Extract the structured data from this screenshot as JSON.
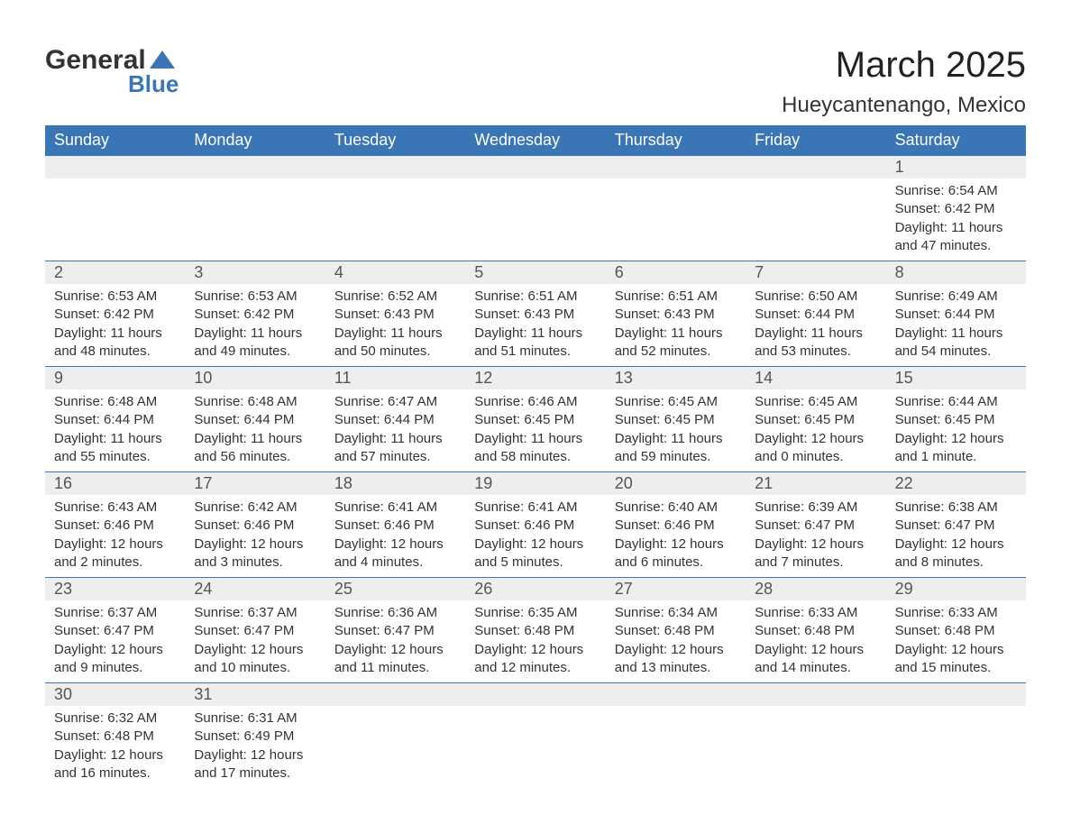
{
  "colors": {
    "header_bg": "#3a75b5",
    "header_text": "#ffffff",
    "daynum_bg": "#eeeeee",
    "body_text": "#333333",
    "divider": "#3a75b5",
    "logo_accent": "#3a75b5"
  },
  "logo": {
    "text1": "General",
    "text2": "Blue"
  },
  "title": "March 2025",
  "location": "Hueycantenango, Mexico",
  "day_headers": [
    "Sunday",
    "Monday",
    "Tuesday",
    "Wednesday",
    "Thursday",
    "Friday",
    "Saturday"
  ],
  "labels": {
    "sunrise": "Sunrise:",
    "sunset": "Sunset:",
    "daylight": "Daylight:"
  },
  "weeks": [
    [
      {
        "num": "",
        "sunrise": "",
        "sunset": "",
        "daylight": ""
      },
      {
        "num": "",
        "sunrise": "",
        "sunset": "",
        "daylight": ""
      },
      {
        "num": "",
        "sunrise": "",
        "sunset": "",
        "daylight": ""
      },
      {
        "num": "",
        "sunrise": "",
        "sunset": "",
        "daylight": ""
      },
      {
        "num": "",
        "sunrise": "",
        "sunset": "",
        "daylight": ""
      },
      {
        "num": "",
        "sunrise": "",
        "sunset": "",
        "daylight": ""
      },
      {
        "num": "1",
        "sunrise": "6:54 AM",
        "sunset": "6:42 PM",
        "daylight": "11 hours and 47 minutes."
      }
    ],
    [
      {
        "num": "2",
        "sunrise": "6:53 AM",
        "sunset": "6:42 PM",
        "daylight": "11 hours and 48 minutes."
      },
      {
        "num": "3",
        "sunrise": "6:53 AM",
        "sunset": "6:42 PM",
        "daylight": "11 hours and 49 minutes."
      },
      {
        "num": "4",
        "sunrise": "6:52 AM",
        "sunset": "6:43 PM",
        "daylight": "11 hours and 50 minutes."
      },
      {
        "num": "5",
        "sunrise": "6:51 AM",
        "sunset": "6:43 PM",
        "daylight": "11 hours and 51 minutes."
      },
      {
        "num": "6",
        "sunrise": "6:51 AM",
        "sunset": "6:43 PM",
        "daylight": "11 hours and 52 minutes."
      },
      {
        "num": "7",
        "sunrise": "6:50 AM",
        "sunset": "6:44 PM",
        "daylight": "11 hours and 53 minutes."
      },
      {
        "num": "8",
        "sunrise": "6:49 AM",
        "sunset": "6:44 PM",
        "daylight": "11 hours and 54 minutes."
      }
    ],
    [
      {
        "num": "9",
        "sunrise": "6:48 AM",
        "sunset": "6:44 PM",
        "daylight": "11 hours and 55 minutes."
      },
      {
        "num": "10",
        "sunrise": "6:48 AM",
        "sunset": "6:44 PM",
        "daylight": "11 hours and 56 minutes."
      },
      {
        "num": "11",
        "sunrise": "6:47 AM",
        "sunset": "6:44 PM",
        "daylight": "11 hours and 57 minutes."
      },
      {
        "num": "12",
        "sunrise": "6:46 AM",
        "sunset": "6:45 PM",
        "daylight": "11 hours and 58 minutes."
      },
      {
        "num": "13",
        "sunrise": "6:45 AM",
        "sunset": "6:45 PM",
        "daylight": "11 hours and 59 minutes."
      },
      {
        "num": "14",
        "sunrise": "6:45 AM",
        "sunset": "6:45 PM",
        "daylight": "12 hours and 0 minutes."
      },
      {
        "num": "15",
        "sunrise": "6:44 AM",
        "sunset": "6:45 PM",
        "daylight": "12 hours and 1 minute."
      }
    ],
    [
      {
        "num": "16",
        "sunrise": "6:43 AM",
        "sunset": "6:46 PM",
        "daylight": "12 hours and 2 minutes."
      },
      {
        "num": "17",
        "sunrise": "6:42 AM",
        "sunset": "6:46 PM",
        "daylight": "12 hours and 3 minutes."
      },
      {
        "num": "18",
        "sunrise": "6:41 AM",
        "sunset": "6:46 PM",
        "daylight": "12 hours and 4 minutes."
      },
      {
        "num": "19",
        "sunrise": "6:41 AM",
        "sunset": "6:46 PM",
        "daylight": "12 hours and 5 minutes."
      },
      {
        "num": "20",
        "sunrise": "6:40 AM",
        "sunset": "6:46 PM",
        "daylight": "12 hours and 6 minutes."
      },
      {
        "num": "21",
        "sunrise": "6:39 AM",
        "sunset": "6:47 PM",
        "daylight": "12 hours and 7 minutes."
      },
      {
        "num": "22",
        "sunrise": "6:38 AM",
        "sunset": "6:47 PM",
        "daylight": "12 hours and 8 minutes."
      }
    ],
    [
      {
        "num": "23",
        "sunrise": "6:37 AM",
        "sunset": "6:47 PM",
        "daylight": "12 hours and 9 minutes."
      },
      {
        "num": "24",
        "sunrise": "6:37 AM",
        "sunset": "6:47 PM",
        "daylight": "12 hours and 10 minutes."
      },
      {
        "num": "25",
        "sunrise": "6:36 AM",
        "sunset": "6:47 PM",
        "daylight": "12 hours and 11 minutes."
      },
      {
        "num": "26",
        "sunrise": "6:35 AM",
        "sunset": "6:48 PM",
        "daylight": "12 hours and 12 minutes."
      },
      {
        "num": "27",
        "sunrise": "6:34 AM",
        "sunset": "6:48 PM",
        "daylight": "12 hours and 13 minutes."
      },
      {
        "num": "28",
        "sunrise": "6:33 AM",
        "sunset": "6:48 PM",
        "daylight": "12 hours and 14 minutes."
      },
      {
        "num": "29",
        "sunrise": "6:33 AM",
        "sunset": "6:48 PM",
        "daylight": "12 hours and 15 minutes."
      }
    ],
    [
      {
        "num": "30",
        "sunrise": "6:32 AM",
        "sunset": "6:48 PM",
        "daylight": "12 hours and 16 minutes."
      },
      {
        "num": "31",
        "sunrise": "6:31 AM",
        "sunset": "6:49 PM",
        "daylight": "12 hours and 17 minutes."
      },
      {
        "num": "",
        "sunrise": "",
        "sunset": "",
        "daylight": ""
      },
      {
        "num": "",
        "sunrise": "",
        "sunset": "",
        "daylight": ""
      },
      {
        "num": "",
        "sunrise": "",
        "sunset": "",
        "daylight": ""
      },
      {
        "num": "",
        "sunrise": "",
        "sunset": "",
        "daylight": ""
      },
      {
        "num": "",
        "sunrise": "",
        "sunset": "",
        "daylight": ""
      }
    ]
  ]
}
